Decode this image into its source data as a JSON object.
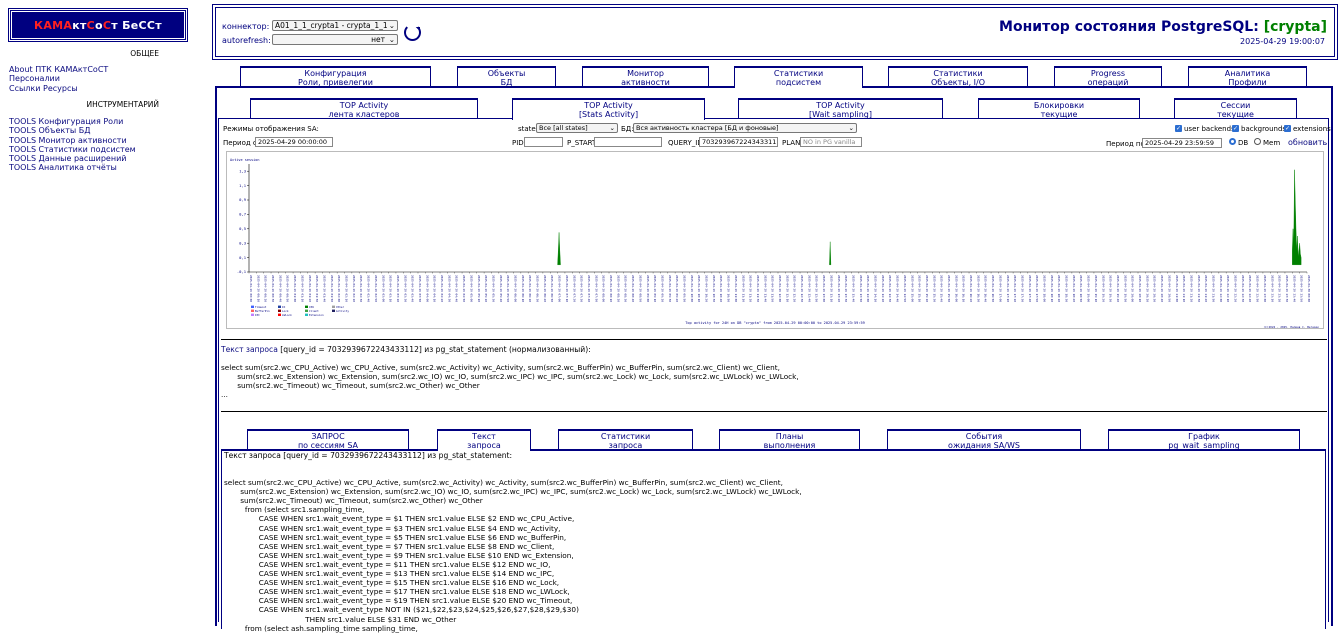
{
  "logo": {
    "red1": "КАМА",
    "white1": "кт",
    "red2": "С",
    "white2": "о",
    "red3": "С",
    "white3": "т БеССт"
  },
  "left": {
    "general_title": "ОБЩЕЕ",
    "general_links": [
      "About ПТК КАМАктСоСТ",
      "Персоналии",
      "Ссылки Ресурсы"
    ],
    "tools_title": "ИНСТРУМЕНТАРИЙ",
    "tools_links": [
      "TOOLS Конфигурация Роли",
      "TOOLS Объекты БД",
      "TOOLS Монитор активности",
      "TOOLS Статистики подсистем",
      "TOOLS Данные расширений",
      "TOOLS Аналитика отчёты"
    ]
  },
  "header": {
    "connector_label": "коннектор:",
    "connector_value": "A01_1_1_crypta1 - crypta_1_1",
    "autorefresh_label": "autorefresh:",
    "autorefresh_value": "нет",
    "title": "Монитор состояния PostgreSQL:",
    "db": "[crypta]",
    "timestamp": "2025-04-29 19:00:07"
  },
  "main_tabs": [
    {
      "l1": "Конфигурация",
      "l2": "Роли, привелегии"
    },
    {
      "l1": "Объекты",
      "l2": "БД"
    },
    {
      "l1": "Монитор",
      "l2": "активности"
    },
    {
      "l1": "Статистики",
      "l2": "подсистем"
    },
    {
      "l1": "Статистики",
      "l2": "Объекты, I/O"
    },
    {
      "l1": "Progress",
      "l2": "операций"
    },
    {
      "l1": "Аналитика",
      "l2": "Профили"
    }
  ],
  "sub_tabs": [
    {
      "l1": "TOP Activity",
      "l2": "лента кластеров"
    },
    {
      "l1": "TOP Activity",
      "l2": "[Stats Activity]"
    },
    {
      "l1": "TOP Activity",
      "l2": "[Wait sampling]"
    },
    {
      "l1": "Блокировки",
      "l2": "текущие"
    },
    {
      "l1": "Сессии",
      "l2": "текущие"
    }
  ],
  "filters": {
    "mode_label": "Режимы отображения SA:",
    "state_label": "state",
    "state_value": "Все [all states]",
    "db_label": "БД:",
    "db_value": "Вся активность кластера [БД и фоновые]",
    "chk_user": "user backends",
    "chk_bg": "backgrounds",
    "chk_ext": "extensions",
    "period_from_label": "Период с",
    "period_from": "2025-04-29 00:00:00",
    "pid_label": "PID",
    "pstart_label": "P_START",
    "queryid_label": "QUERY_ID",
    "queryid_value": "7032939672243433112",
    "plan_label": "PLAN",
    "plan_placeholder": "NO in PG vanilla",
    "period_to_label": "Период по",
    "period_to": "2025-04-29 23:59:59",
    "radio_db": "DB",
    "radio_mem": "Mem",
    "refresh": "обновить"
  },
  "chart_data": {
    "type": "area",
    "title": "Top activity for 24H on DB \"crypta\" from 2025-04-29 00:00:00 to 2025-04-29 23:59:59",
    "ylabel": "Active session",
    "yticks": [
      "-0,1",
      "0,1",
      "0,3",
      "0,5",
      "0,7",
      "0,9",
      "1,1",
      "1,3"
    ],
    "ylim": [
      -0.1,
      1.4
    ],
    "legend": [
      "Timeout",
      "BufferPin",
      "IPC",
      "IO",
      "Lock",
      "LWLock",
      "CPU",
      "Client",
      "Extension",
      "Other",
      "Activity"
    ],
    "footer": "(C)2024 - 2025, Палиев С. Ветерок",
    "series": [
      {
        "name": "CPU",
        "color": "#008000",
        "x": [
          "07:00",
          "07:01",
          "07:02",
          "07:03",
          "07:04",
          "13:10",
          "13:11",
          "13:12",
          "23:40",
          "23:41",
          "23:42",
          "23:43",
          "23:44",
          "23:45",
          "23:46",
          "23:47",
          "23:48",
          "23:49",
          "23:50",
          "23:51",
          "23:52"
        ],
        "values": [
          0,
          0.2,
          0.45,
          0.2,
          0,
          0,
          0.32,
          0,
          0.2,
          0.5,
          0.3,
          1.32,
          0.9,
          0.5,
          0.2,
          0.4,
          0.1,
          0.2,
          0.3,
          0.15,
          0.1
        ]
      }
    ]
  },
  "query_section": {
    "heading_link": "Текст запроса",
    "heading_rest": "[query_id = 7032939672243433112] из pg_stat_statement (нормализованный):",
    "lines": [
      "select sum(src2.wc_CPU_Active) wc_CPU_Active, sum(src2.wc_Activity) wc_Activity, sum(src2.wc_BufferPin) wc_BufferPin, sum(src2.wc_Client) wc_Client,",
      "       sum(src2.wc_Extension) wc_Extension, sum(src2.wc_IO) wc_IO, sum(src2.wc_IPC) wc_IPC, sum(src2.wc_Lock) wc_Lock, sum(src2.wc_LWLock) wc_LWLock,",
      "       sum(src2.wc_Timeout) wc_Timeout, sum(src2.wc_Other) wc_Other",
      "..."
    ]
  },
  "bottom_tabs": [
    {
      "l1": "ЗАПРОС",
      "l2": "по сессиям SA"
    },
    {
      "l1": "Текст",
      "l2": "запроса"
    },
    {
      "l1": "Статистики",
      "l2": "запроса"
    },
    {
      "l1": "Планы",
      "l2": "выполнения"
    },
    {
      "l1": "События",
      "l2": "ожидания SA/WS"
    },
    {
      "l1": "График",
      "l2": "pg_wait_sampling"
    }
  ],
  "bottom_query": {
    "heading": "Текст запроса [query_id = 7032939672243433112] из pg_stat_statement:",
    "lines": [
      "select sum(src2.wc_CPU_Active) wc_CPU_Active, sum(src2.wc_Activity) wc_Activity, sum(src2.wc_BufferPin) wc_BufferPin, sum(src2.wc_Client) wc_Client,",
      "       sum(src2.wc_Extension) wc_Extension, sum(src2.wc_IO) wc_IO, sum(src2.wc_IPC) wc_IPC, sum(src2.wc_Lock) wc_Lock, sum(src2.wc_LWLock) wc_LWLock,",
      "       sum(src2.wc_Timeout) wc_Timeout, sum(src2.wc_Other) wc_Other",
      "         from (select src1.sampling_time,",
      "               CASE WHEN src1.wait_event_type = $1 THEN src1.value ELSE $2 END wc_CPU_Active,",
      "               CASE WHEN src1.wait_event_type = $3 THEN src1.value ELSE $4 END wc_Activity,",
      "               CASE WHEN src1.wait_event_type = $5 THEN src1.value ELSE $6 END wc_BufferPin,",
      "               CASE WHEN src1.wait_event_type = $7 THEN src1.value ELSE $8 END wc_Client,",
      "               CASE WHEN src1.wait_event_type = $9 THEN src1.value ELSE $10 END wc_Extension,",
      "               CASE WHEN src1.wait_event_type = $11 THEN src1.value ELSE $12 END wc_IO,",
      "               CASE WHEN src1.wait_event_type = $13 THEN src1.value ELSE $14 END wc_IPC,",
      "               CASE WHEN src1.wait_event_type = $15 THEN src1.value ELSE $16 END wc_Lock,",
      "               CASE WHEN src1.wait_event_type = $17 THEN src1.value ELSE $18 END wc_LWLock,",
      "               CASE WHEN src1.wait_event_type = $19 THEN src1.value ELSE $20 END wc_Timeout,",
      "               CASE WHEN src1.wait_event_type NOT IN ($21,$22,$23,$24,$25,$26,$27,$28,$29,$30)",
      "                                   THEN src1.value ELSE $31 END wc_Other",
      "         from (select ash.sampling_time sampling_time,"
    ]
  }
}
